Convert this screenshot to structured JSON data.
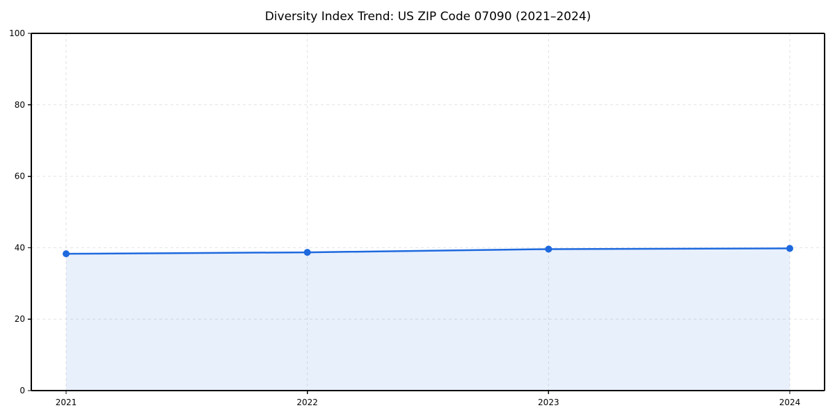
{
  "chart_data": {
    "type": "area",
    "title": "Diversity Index Trend: US ZIP Code 07090 (2021–2024)",
    "x": [
      2021,
      2022,
      2023,
      2024
    ],
    "values": [
      38.3,
      38.7,
      39.6,
      39.8
    ],
    "xticks": [
      "2021",
      "2022",
      "2023",
      "2024"
    ],
    "yticks": [
      0,
      20,
      40,
      60,
      80,
      100
    ],
    "ylim": [
      0,
      100
    ],
    "xlabel": "",
    "ylabel": "",
    "grid": true,
    "grid_style": "dashed",
    "legend_position": "none",
    "line_color": "#1e69de",
    "marker_color": "#1e69de",
    "fill_color": "rgba(30,105,222,0.10)",
    "grid_color": "#e2e2e2",
    "spine_color": "#000000",
    "text_color": "#000000"
  }
}
